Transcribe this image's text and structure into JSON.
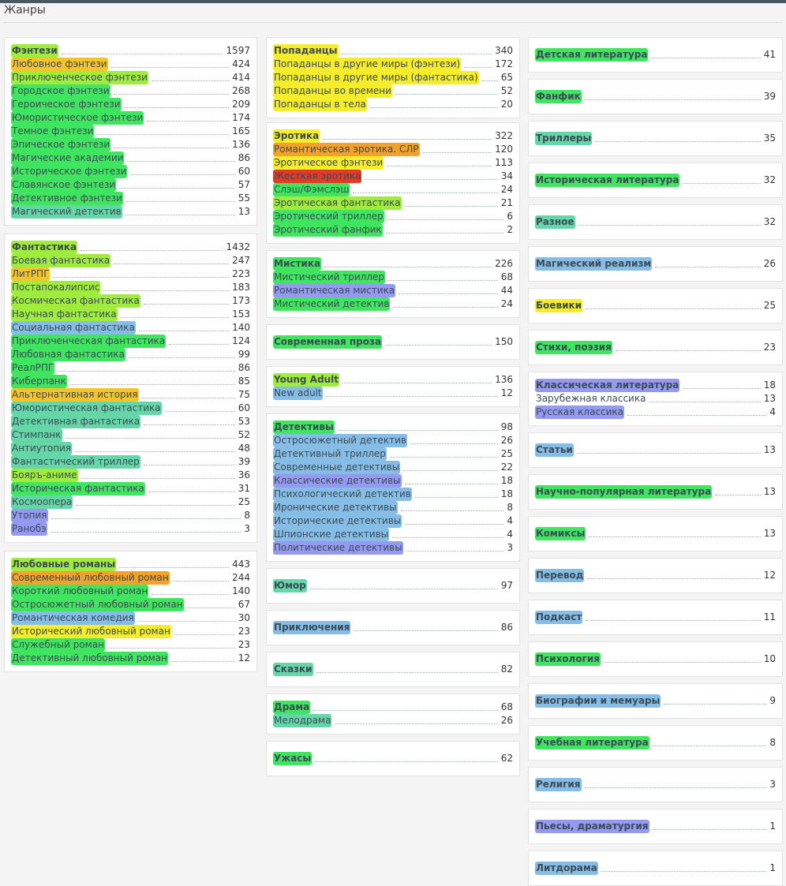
{
  "heading": "Жанры",
  "colors": {
    "c1": "#3fe55f",
    "c2": "#9fec3c",
    "c3": "#f5ec2a",
    "c4": "#f2a22a",
    "c5": "#e23a26",
    "c6": "#64d6a7",
    "c7": "#86bde6",
    "c8": "#9599ef",
    "c9": "#f5c42a"
  },
  "columns": [
    {
      "id": "col1",
      "cards": [
        {
          "gap": 0,
          "rows": [
            {
              "name": "Фэнтези",
              "count": "1597",
              "c": "c2",
              "head": true
            },
            {
              "name": "Любовное фэнтези",
              "count": "424",
              "c": "c9"
            },
            {
              "name": "Приключенческое фэнтези",
              "count": "414",
              "c": "c2"
            },
            {
              "name": "Городское фэнтези",
              "count": "268",
              "c": "c1"
            },
            {
              "name": "Героическое фэнтези",
              "count": "209",
              "c": "c1"
            },
            {
              "name": "Юмористическое фэнтези",
              "count": "174",
              "c": "c1"
            },
            {
              "name": "Темное фэнтези",
              "count": "165",
              "c": "c1"
            },
            {
              "name": "Эпическое фэнтези",
              "count": "136",
              "c": "c1"
            },
            {
              "name": "Магические академии",
              "count": "86",
              "c": "c1"
            },
            {
              "name": "Историческое фэнтези",
              "count": "60",
              "c": "c1"
            },
            {
              "name": "Славянское фэнтези",
              "count": "57",
              "c": "c1"
            },
            {
              "name": "Детективное фэнтези",
              "count": "55",
              "c": "c1"
            },
            {
              "name": "Магический детектив",
              "count": "13",
              "c": "c6"
            }
          ]
        },
        {
          "gap": 10,
          "rows": [
            {
              "name": "Фантастика",
              "count": "1432",
              "c": "c2",
              "head": true
            },
            {
              "name": "Боевая фантастика",
              "count": "247",
              "c": "c2"
            },
            {
              "name": "ЛитРПГ",
              "count": "223",
              "c": "c9"
            },
            {
              "name": "Постапокалипсис",
              "count": "183",
              "c": "c2"
            },
            {
              "name": "Космическая фантастика",
              "count": "173",
              "c": "c2"
            },
            {
              "name": "Научная фантастика",
              "count": "153",
              "c": "c2"
            },
            {
              "name": "Социальная фантастика",
              "count": "140",
              "c": "c7"
            },
            {
              "name": "Приключенческая фантастика",
              "count": "124",
              "c": "c1"
            },
            {
              "name": "Любовная фантастика",
              "count": "99",
              "c": "c1"
            },
            {
              "name": "РеалРПГ",
              "count": "86",
              "c": "c1"
            },
            {
              "name": "Киберпанк",
              "count": "85",
              "c": "c1"
            },
            {
              "name": "Альтернативная история",
              "count": "75",
              "c": "c9"
            },
            {
              "name": "Юмористическая фантастика",
              "count": "60",
              "c": "c6"
            },
            {
              "name": "Детективная фантастика",
              "count": "53",
              "c": "c6"
            },
            {
              "name": "Стимпанк",
              "count": "52",
              "c": "c6"
            },
            {
              "name": "Антиутопия",
              "count": "48",
              "c": "c6"
            },
            {
              "name": "Фантастический триллер",
              "count": "39",
              "c": "c6"
            },
            {
              "name": "Бояръ-аниме",
              "count": "36",
              "c": "c2"
            },
            {
              "name": "Историческая фантастика",
              "count": "31",
              "c": "c1"
            },
            {
              "name": "Космоопера",
              "count": "25",
              "c": "c6"
            },
            {
              "name": "Утопия",
              "count": "8",
              "c": "c8"
            },
            {
              "name": "Ранобэ",
              "count": "3",
              "c": "c8"
            }
          ]
        },
        {
          "gap": 10,
          "rows": [
            {
              "name": "Любовные романы",
              "count": "443",
              "c": "c2",
              "head": true
            },
            {
              "name": "Современный любовный роман",
              "count": "244",
              "c": "c4"
            },
            {
              "name": "Короткий любовный роман",
              "count": "140",
              "c": "c1"
            },
            {
              "name": "Остросюжетный любовный роман",
              "count": "67",
              "c": "c1"
            },
            {
              "name": "Романтическая комедия",
              "count": "30",
              "c": "c7"
            },
            {
              "name": "Исторический любовный роман",
              "count": "23",
              "c": "c3"
            },
            {
              "name": "Служебный роман",
              "count": "23",
              "c": "c1"
            },
            {
              "name": "Детективный любовный роман",
              "count": "12",
              "c": "c1"
            }
          ]
        }
      ]
    },
    {
      "id": "col2",
      "cards": [
        {
          "gap": 0,
          "rows": [
            {
              "name": "Попаданцы",
              "count": "340",
              "c": "c3",
              "head": true
            },
            {
              "name": "Попаданцы в другие миры (фэнтези)",
              "count": "172",
              "c": "c3"
            },
            {
              "name": "Попаданцы в другие миры (фантастика)",
              "count": "65",
              "c": "c3"
            },
            {
              "name": "Попаданцы во времени",
              "count": "52",
              "c": "c3"
            },
            {
              "name": "Попаданцы в тела",
              "count": "20",
              "c": "c3"
            }
          ]
        },
        {
          "gap": 5,
          "rows": [
            {
              "name": "Эротика",
              "count": "322",
              "c": "c3",
              "head": true
            },
            {
              "name": "Романтическая эротика. СЛР",
              "count": "120",
              "c": "c4"
            },
            {
              "name": "Эротическое фэнтези",
              "count": "113",
              "c": "c3"
            },
            {
              "name": "Жесткая эротика",
              "count": "34",
              "c": "c5"
            },
            {
              "name": "Слэш/Фэмслэш",
              "count": "24",
              "c": "c1"
            },
            {
              "name": "Эротическая фантастика",
              "count": "21",
              "c": "c2"
            },
            {
              "name": "Эротический триллер",
              "count": "6",
              "c": "c1"
            },
            {
              "name": "Эротический фанфик",
              "count": "2",
              "c": "c1"
            }
          ]
        },
        {
          "gap": 8,
          "rows": [
            {
              "name": "Мистика",
              "count": "226",
              "c": "c1",
              "head": true
            },
            {
              "name": "Мистический триллер",
              "count": "68",
              "c": "c1"
            },
            {
              "name": "Романтическая мистика",
              "count": "44",
              "c": "c8"
            },
            {
              "name": "Мистический детектив",
              "count": "24",
              "c": "c1"
            }
          ]
        },
        {
          "gap": 8,
          "single": true,
          "rows": [
            {
              "name": "Современная проза",
              "count": "150",
              "c": "c1",
              "head": true
            }
          ]
        },
        {
          "gap": 8,
          "rows": [
            {
              "name": "Young Adult",
              "count": "136",
              "c": "c2",
              "head": true
            },
            {
              "name": "New adult",
              "count": "12",
              "c": "c7"
            }
          ]
        },
        {
          "gap": 8,
          "rows": [
            {
              "name": "Детективы",
              "count": "98",
              "c": "c1",
              "head": true
            },
            {
              "name": "Остросюжетный детектив",
              "count": "26",
              "c": "c7"
            },
            {
              "name": "Детективный триллер",
              "count": "25",
              "c": "c7"
            },
            {
              "name": "Современные детективы",
              "count": "22",
              "c": "c7"
            },
            {
              "name": "Классические детективы",
              "count": "18",
              "c": "c8"
            },
            {
              "name": "Психологический детектив",
              "count": "18",
              "c": "c7"
            },
            {
              "name": "Иронические детективы",
              "count": "8",
              "c": "c7"
            },
            {
              "name": "Исторические детективы",
              "count": "4",
              "c": "c7"
            },
            {
              "name": "Шпионские детективы",
              "count": "4",
              "c": "c7"
            },
            {
              "name": "Политические детективы",
              "count": "3",
              "c": "c8"
            }
          ]
        },
        {
          "gap": 8,
          "single": true,
          "rows": [
            {
              "name": "Юмор",
              "count": "97",
              "c": "c6",
              "head": true
            }
          ]
        },
        {
          "gap": 8,
          "single": true,
          "rows": [
            {
              "name": "Приключения",
              "count": "86",
              "c": "c7",
              "head": true
            }
          ]
        },
        {
          "gap": 8,
          "single": true,
          "rows": [
            {
              "name": "Сказки",
              "count": "82",
              "c": "c6",
              "head": true
            }
          ]
        },
        {
          "gap": 8,
          "rows": [
            {
              "name": "Драма",
              "count": "68",
              "c": "c1",
              "head": true
            },
            {
              "name": "Мелодрама",
              "count": "26",
              "c": "c6"
            }
          ]
        },
        {
          "gap": 8,
          "single": true,
          "rows": [
            {
              "name": "Ужасы",
              "count": "62",
              "c": "c1",
              "head": true
            }
          ]
        }
      ]
    },
    {
      "id": "col3",
      "cards": [
        {
          "gap": 0,
          "single": true,
          "rows": [
            {
              "name": "Детская литература",
              "count": "41",
              "c": "c1",
              "head": true
            }
          ]
        },
        {
          "gap": 8,
          "single": true,
          "rows": [
            {
              "name": "Фанфик",
              "count": "39",
              "c": "c1",
              "head": true
            }
          ]
        },
        {
          "gap": 8,
          "single": true,
          "rows": [
            {
              "name": "Триллеры",
              "count": "35",
              "c": "c6",
              "head": true
            }
          ]
        },
        {
          "gap": 8,
          "single": true,
          "rows": [
            {
              "name": "Историческая литература",
              "count": "32",
              "c": "c1",
              "head": true
            }
          ]
        },
        {
          "gap": 8,
          "single": true,
          "rows": [
            {
              "name": "Разное",
              "count": "32",
              "c": "c6",
              "head": true
            }
          ]
        },
        {
          "gap": 8,
          "single": true,
          "rows": [
            {
              "name": "Магический реализм",
              "count": "26",
              "c": "c7",
              "head": true
            }
          ]
        },
        {
          "gap": 8,
          "single": true,
          "rows": [
            {
              "name": "Боевики",
              "count": "25",
              "c": "c3",
              "head": true
            }
          ]
        },
        {
          "gap": 8,
          "single": true,
          "rows": [
            {
              "name": "Стихи, поэзия",
              "count": "23",
              "c": "c1",
              "head": true
            }
          ]
        },
        {
          "gap": 8,
          "rows": [
            {
              "name": "Классическая литература",
              "count": "18",
              "c": "c8",
              "head": true
            },
            {
              "name": "Зарубежная классика",
              "count": "13",
              "c": ""
            },
            {
              "name": "Русская классика",
              "count": "4",
              "c": "c8"
            }
          ]
        },
        {
          "gap": 8,
          "single": true,
          "rows": [
            {
              "name": "Статьи",
              "count": "13",
              "c": "c7",
              "head": true
            }
          ]
        },
        {
          "gap": 8,
          "single": true,
          "rows": [
            {
              "name": "Научно-популярная литература",
              "count": "13",
              "c": "c1",
              "head": true
            }
          ]
        },
        {
          "gap": 8,
          "single": true,
          "rows": [
            {
              "name": "Комиксы",
              "count": "13",
              "c": "c1",
              "head": true
            }
          ]
        },
        {
          "gap": 8,
          "single": true,
          "rows": [
            {
              "name": "Перевод",
              "count": "12",
              "c": "c7",
              "head": true
            }
          ]
        },
        {
          "gap": 8,
          "single": true,
          "rows": [
            {
              "name": "Подкаст",
              "count": "11",
              "c": "c7",
              "head": true
            }
          ]
        },
        {
          "gap": 8,
          "single": true,
          "rows": [
            {
              "name": "Психология",
              "count": "10",
              "c": "c1",
              "head": true
            }
          ]
        },
        {
          "gap": 8,
          "single": true,
          "rows": [
            {
              "name": "Биографии и мемуары",
              "count": "9",
              "c": "c7",
              "head": true
            }
          ]
        },
        {
          "gap": 8,
          "single": true,
          "rows": [
            {
              "name": "Учебная литература",
              "count": "8",
              "c": "c1",
              "head": true
            }
          ]
        },
        {
          "gap": 8,
          "single": true,
          "rows": [
            {
              "name": "Религия",
              "count": "3",
              "c": "c7",
              "head": true
            }
          ]
        },
        {
          "gap": 8,
          "single": true,
          "rows": [
            {
              "name": "Пьесы, драматургия",
              "count": "1",
              "c": "c8",
              "head": true
            }
          ]
        },
        {
          "gap": 8,
          "single": true,
          "rows": [
            {
              "name": "Литдорама",
              "count": "1",
              "c": "c7",
              "head": true
            }
          ]
        }
      ]
    }
  ]
}
